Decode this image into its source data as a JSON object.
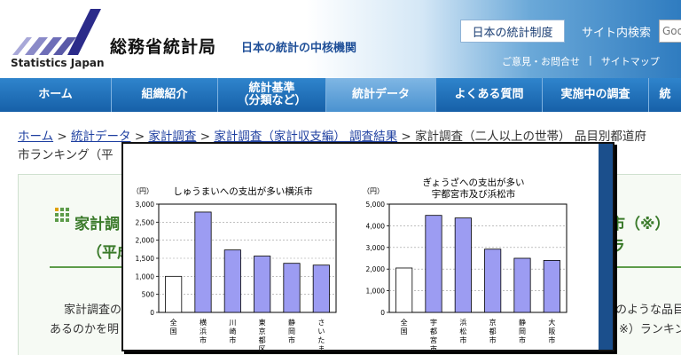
{
  "header": {
    "org_name": "総務省統計局",
    "org_name_en": "Statistics Japan",
    "tagline": "日本の統計の中核機関",
    "system_button": "日本の統計制度",
    "search_label": "サイト内検索",
    "search_placeholder": "Goo",
    "links": [
      "ご意見・お問合せ",
      "サイトマップ"
    ],
    "colors": {
      "nav": "#1d6db5",
      "accent": "#3a7a2a"
    }
  },
  "nav": {
    "items": [
      {
        "label": "ホーム"
      },
      {
        "label": "組織紹介"
      },
      {
        "label": "統計基準\n（分類など）"
      },
      {
        "label": "統計データ",
        "active": true
      },
      {
        "label": "よくある質問"
      },
      {
        "label": "実施中の調査"
      },
      {
        "label": "統"
      }
    ]
  },
  "breadcrumb": {
    "links": [
      "ホーム",
      "統計データ",
      "家計調査",
      "家計調査（家計収支編） 調査結果"
    ],
    "current_line1": "家計調査（二人以上の世帯） 品目別都道府",
    "current_line2": "市ランキング（平"
  },
  "content": {
    "heading_line1": "家計調",
    "heading_line2": "（平成",
    "heading_right": "市（※）ラ",
    "body_line1": "家計調査の",
    "body_line2": "あるのかを明",
    "body_right1": "のような品目",
    "body_right2": "※）ランキン"
  },
  "chart_data": [
    {
      "type": "bar",
      "title": "しゅうまいへの支出が多い横浜市",
      "ylabel": "（円）",
      "ylim": [
        0,
        3000
      ],
      "yticks": [
        0,
        500,
        1000,
        1500,
        2000,
        2500,
        3000
      ],
      "ytick_labels": [
        "0",
        "500",
        "1,000",
        "1,500",
        "2,000",
        "2,500",
        "3,000"
      ],
      "categories": [
        "全国",
        "横浜市",
        "川崎市",
        "東京都区部",
        "静岡市",
        "さいたま市"
      ],
      "values": [
        1000,
        2780,
        1730,
        1560,
        1360,
        1310
      ],
      "colors": [
        "#ffffff",
        "#9c9cf2",
        "#9c9cf2",
        "#9c9cf2",
        "#9c9cf2",
        "#9c9cf2"
      ],
      "grid": true
    },
    {
      "type": "bar",
      "title": "ぎょうざへの支出が多い\n宇都宮市及び浜松市",
      "ylabel": "（円）",
      "ylim": [
        0,
        5000
      ],
      "yticks": [
        0,
        1000,
        2000,
        3000,
        4000,
        5000
      ],
      "ytick_labels": [
        "0",
        "1,000",
        "2,000",
        "3,000",
        "4,000",
        "5,000"
      ],
      "categories": [
        "全国",
        "宇都宮市",
        "浜松市",
        "京都市",
        "静岡市",
        "大阪市"
      ],
      "values": [
        2050,
        4480,
        4360,
        2920,
        2500,
        2400
      ],
      "colors": [
        "#ffffff",
        "#9c9cf2",
        "#9c9cf2",
        "#9c9cf2",
        "#9c9cf2",
        "#9c9cf2"
      ],
      "grid": true
    }
  ]
}
